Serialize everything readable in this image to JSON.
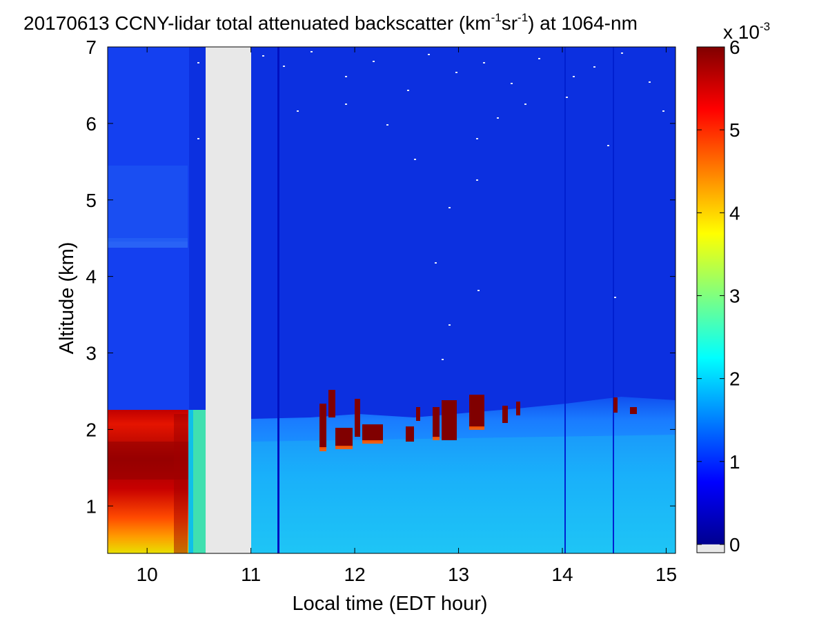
{
  "chart_data": {
    "type": "heatmap",
    "title": {
      "main": "20170613 CCNY-lidar total attenuated backscatter (km",
      "unit_exp_1": "-1",
      "unit_mid": "sr",
      "unit_exp_2": "-1",
      "tail": ") at 1064-nm"
    },
    "xlabel": "Local time (EDT hour)",
    "ylabel": "Altitude (km)",
    "xlim": [
      9.62,
      15.09
    ],
    "ylim": [
      0.38,
      7.0
    ],
    "x_ticks": [
      10,
      11,
      12,
      13,
      14,
      15
    ],
    "y_ticks": [
      1,
      2,
      3,
      4,
      5,
      6,
      7
    ],
    "colorbar": {
      "colormap": "jet",
      "range": [
        0,
        0.006
      ],
      "ticks": [
        0,
        1,
        2,
        3,
        4,
        5,
        6
      ],
      "multiplier_base": "x 10",
      "multiplier_exp": "-3",
      "below_min_color": "#e8e8e8"
    },
    "no_data_intervals": [
      [
        10.58,
        11.01
      ]
    ],
    "boundary_layer_top_km": [
      [
        9.62,
        2.26
      ],
      [
        10.4,
        2.22
      ],
      [
        10.58,
        2.25
      ],
      [
        11.0,
        2.15
      ],
      [
        11.5,
        2.1
      ],
      [
        12.0,
        2.2
      ],
      [
        12.5,
        2.15
      ],
      [
        13.0,
        2.3
      ],
      [
        13.5,
        2.35
      ],
      [
        14.0,
        2.45
      ],
      [
        14.5,
        2.55
      ],
      [
        15.09,
        2.6
      ]
    ],
    "values_description": "Backscatter ~5-6e-3 below 2.25 km before 10.4 h; ~1.5-2.5e-3 in boundary layer after 11 h; saturated (>=6e-3) cloud patches near 1.8-2.5 km between 11.7 and 14.7 h; ~0.3e-3 free troposphere"
  }
}
